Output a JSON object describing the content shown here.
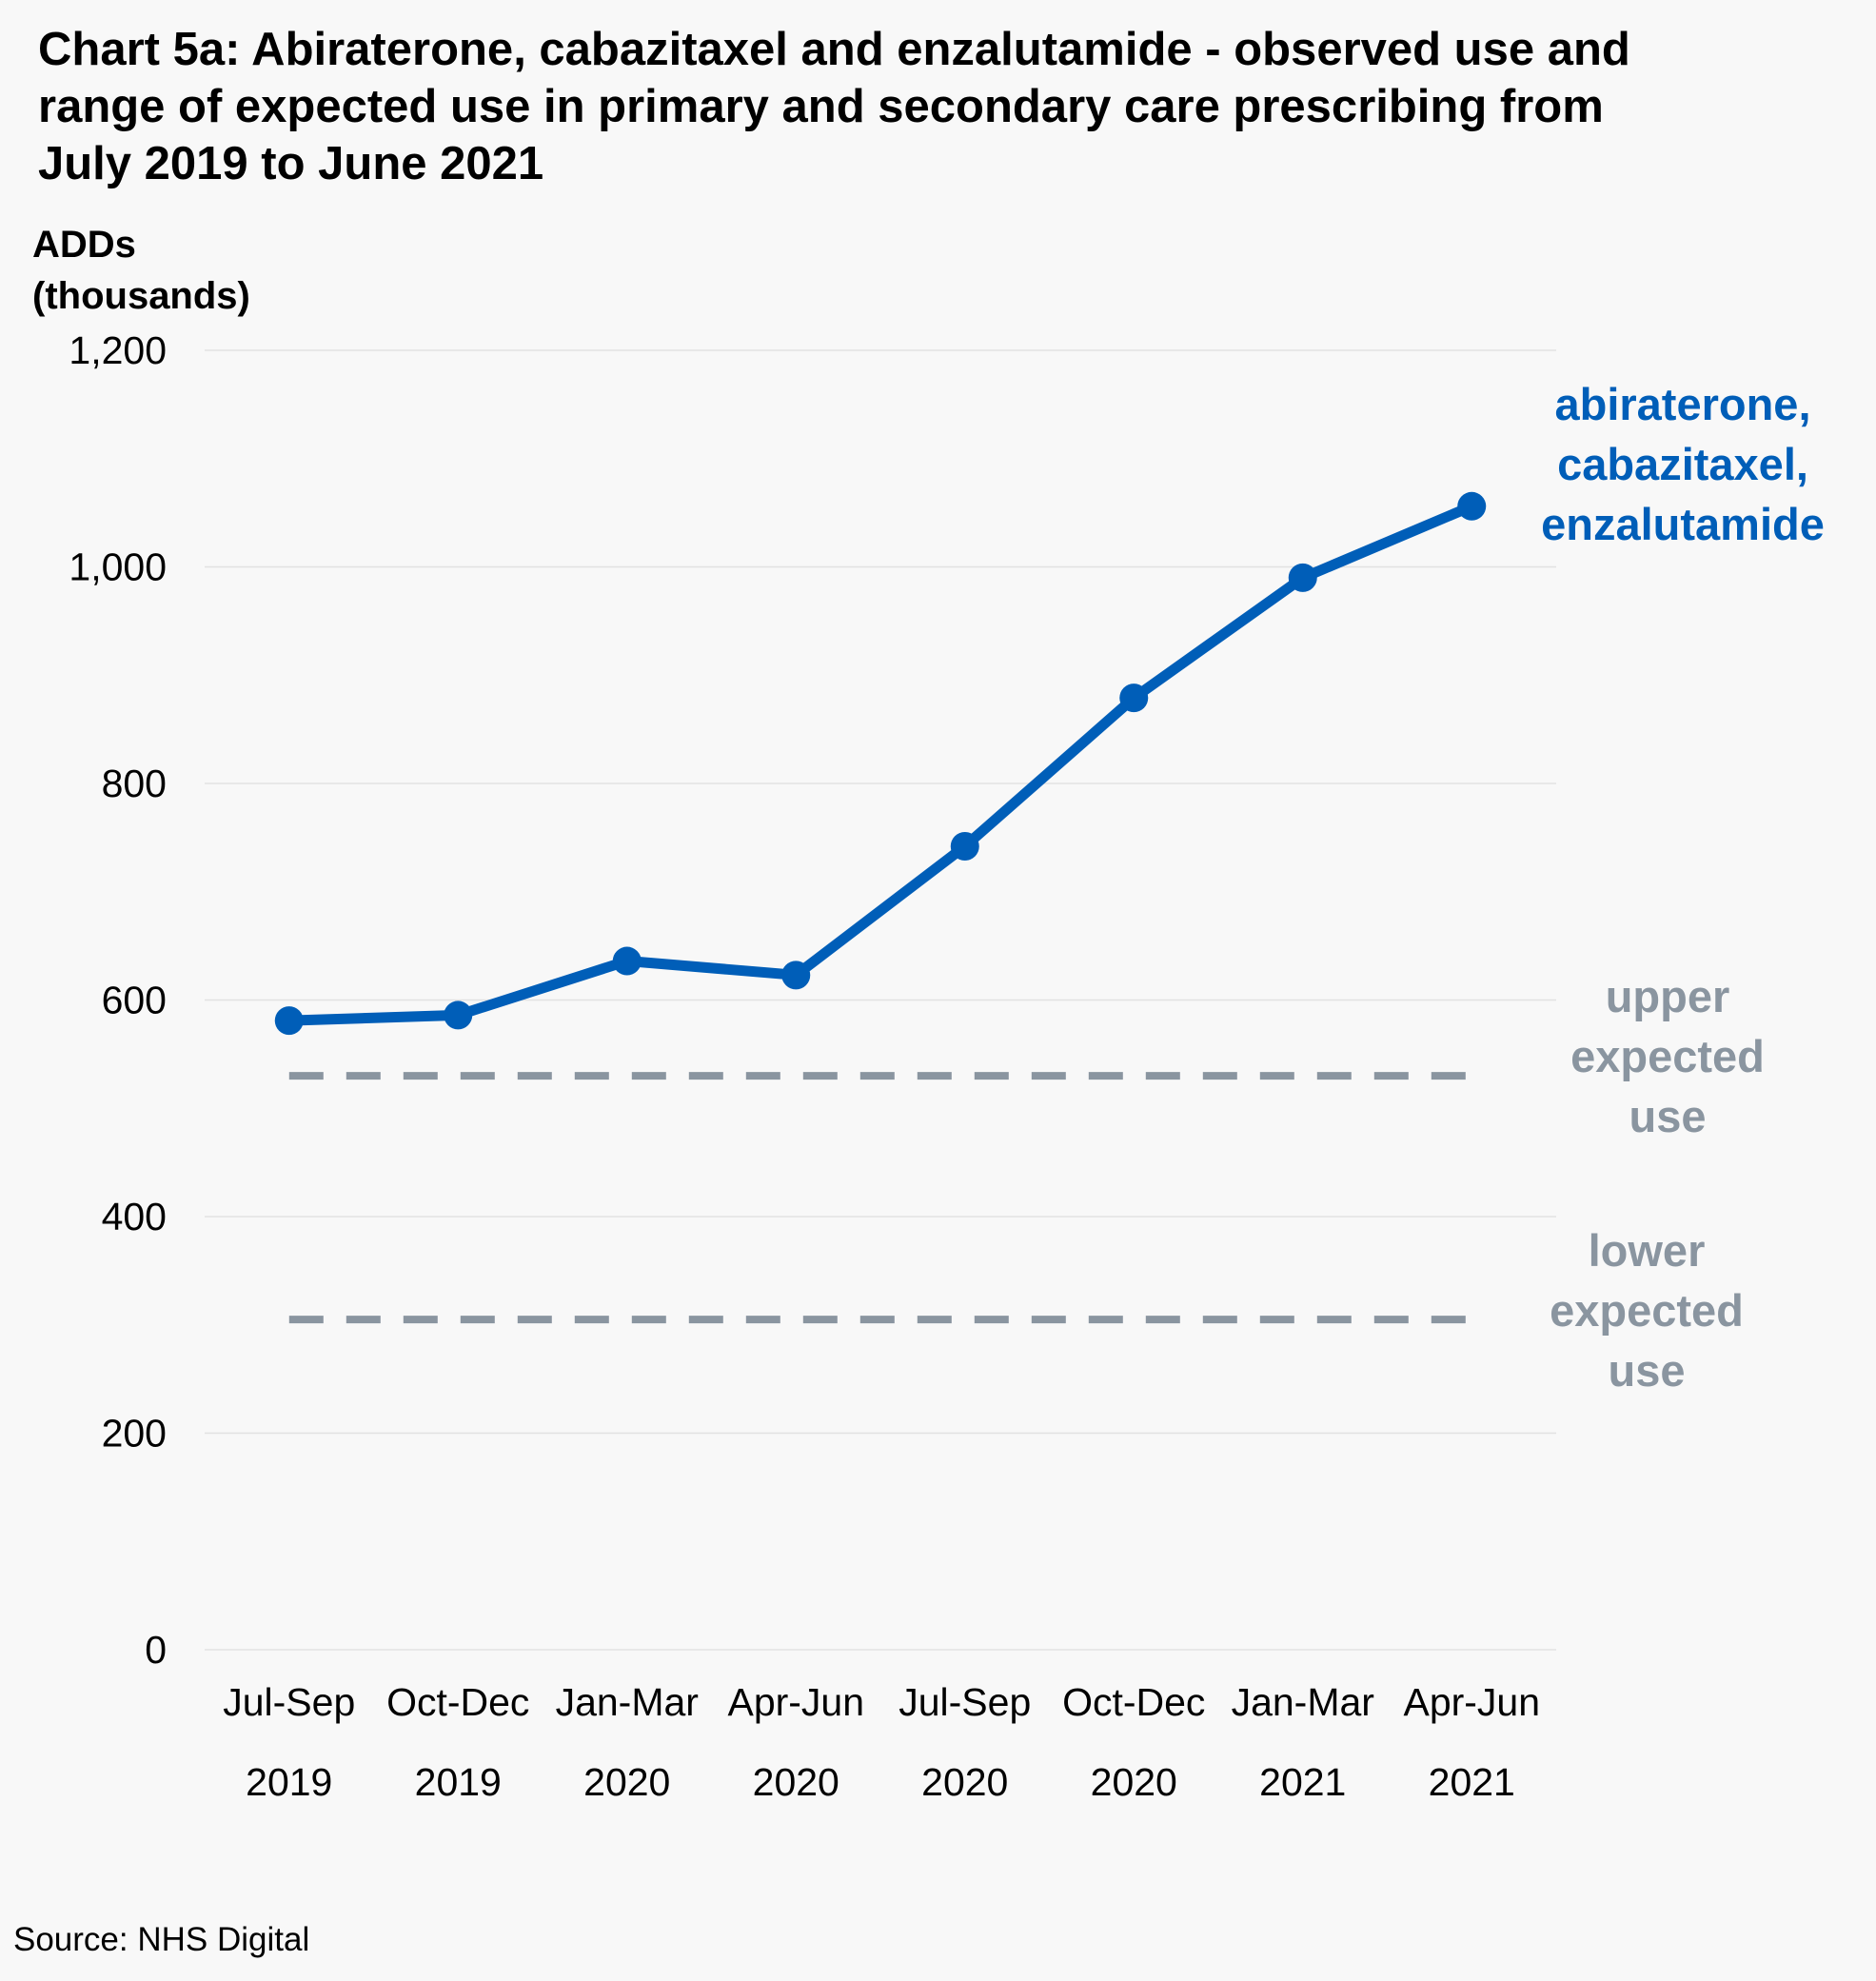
{
  "title_lines": [
    "Chart 5a: Abiraterone, cabazitaxel and enzalutamide - observed use and",
    "range of expected use in primary and secondary care prescribing from",
    "July 2019 to June 2021"
  ],
  "source": "Source: NHS Digital",
  "colors": {
    "observed": "#005eb8",
    "expected": "#8a95a0",
    "grid": "#e2e2e2",
    "background": "#f8f8f8"
  },
  "chart_data": {
    "type": "line",
    "title": "Chart 5a: Abiraterone, cabazitaxel and enzalutamide - observed use and range of expected use in primary and secondary care prescribing from July 2019 to June 2021",
    "ylabel_lines": [
      "ADDs",
      "(thousands)"
    ],
    "xlabel": "",
    "categories": [
      [
        "Jul-Sep",
        "2019"
      ],
      [
        "Oct-Dec",
        "2019"
      ],
      [
        "Jan-Mar",
        "2020"
      ],
      [
        "Apr-Jun",
        "2020"
      ],
      [
        "Jul-Sep",
        "2020"
      ],
      [
        "Oct-Dec",
        "2020"
      ],
      [
        "Jan-Mar",
        "2021"
      ],
      [
        "Apr-Jun",
        "2021"
      ]
    ],
    "ylim": [
      0,
      1200
    ],
    "yticks": [
      0,
      200,
      400,
      600,
      800,
      1000,
      1200
    ],
    "ytick_labels": [
      "0",
      "200",
      "400",
      "600",
      "800",
      "1,000",
      "1,200"
    ],
    "grid": true,
    "legend": "none (direct labels at right)",
    "series": [
      {
        "label_lines": [
          "abiraterone,",
          "cabazitaxel,",
          "enzalutamide"
        ],
        "style": "solid-markers",
        "color": "#005eb8",
        "values": [
          581,
          586,
          636,
          623,
          742,
          879,
          990,
          1056
        ]
      },
      {
        "label_lines": [
          "upper",
          "expected",
          "use"
        ],
        "style": "dashed",
        "color": "#8a95a0",
        "values": [
          530,
          530,
          530,
          530,
          530,
          530,
          530,
          530
        ]
      },
      {
        "label_lines": [
          "lower",
          "expected",
          "use"
        ],
        "style": "dashed",
        "color": "#8a95a0",
        "values": [
          305,
          305,
          305,
          305,
          305,
          305,
          305,
          305
        ]
      }
    ]
  }
}
